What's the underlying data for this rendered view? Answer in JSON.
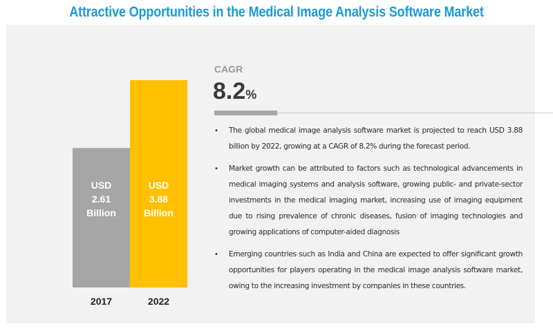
{
  "page": {
    "title": "Attractive Opportunities in the Medical Image Analysis Software Market"
  },
  "cagr": {
    "label": "CAGR",
    "value": "8.2",
    "unit": "%"
  },
  "bullets": [
    "The global medical image analysis software market is projected to reach USD 3.88 billion by 2022, growing at a CAGR of 8.2% during the forecast period.",
    "Market growth can be attributed to factors such as technological advancements in medical imaging systems and analysis software, growing public- and private-sector investments in the medical imaging market, increasing use of imaging equipment due to rising prevalence of chronic diseases, fusion of imaging technologies and growing applications of computer-aided diagnosis",
    "Emerging countries such as India and China are expected to offer significant growth opportunities for players operating in the medical image analysis software market, owing to the increasing investment by companies in these countries."
  ],
  "bullet_symbol": "•",
  "colors": {
    "title": "#1a9bd7",
    "bar_2017": "#a6a6a6",
    "bar_2022": "#ffc000",
    "panel": "#f2f2f2",
    "bar_label": "#ffffff"
  },
  "chart_data": {
    "type": "bar",
    "categories": [
      "2017",
      "2022"
    ],
    "values": [
      2.61,
      3.88
    ],
    "value_unit": "USD Billion",
    "data_labels": [
      [
        "USD",
        "2.61",
        "Billion"
      ],
      [
        "USD",
        "3.88",
        "Billion"
      ]
    ],
    "title": "",
    "xlabel": "",
    "ylabel": "",
    "ylim": [
      0,
      3.88
    ],
    "grid": false,
    "legend": "none"
  }
}
